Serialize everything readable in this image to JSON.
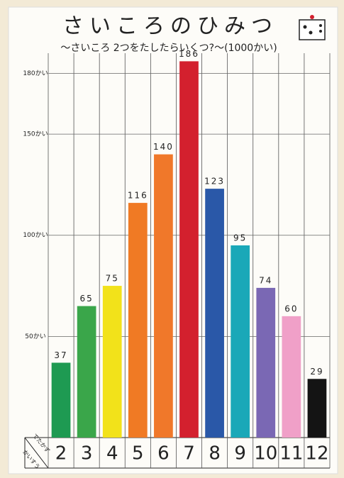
{
  "chart_data": {
    "type": "bar",
    "title": "さいころのひみつ",
    "subtitle": "〜さいころ 2つをたしたらいくつ?〜(1000かい)",
    "x_label": "でたかず",
    "y_label": "かいすう",
    "categories": [
      "2",
      "3",
      "4",
      "5",
      "6",
      "7",
      "8",
      "9",
      "10",
      "11",
      "12"
    ],
    "values": [
      37,
      65,
      75,
      116,
      140,
      186,
      123,
      95,
      74,
      60,
      29
    ],
    "colors": [
      "#1e9a52",
      "#3aa64a",
      "#f2e21a",
      "#f07a24",
      "#f0782a",
      "#d3202e",
      "#2a58a8",
      "#1aa8b8",
      "#7a68b4",
      "#f0a0c8",
      "#141414"
    ],
    "ylim": [
      0,
      190
    ],
    "yticks": [
      {
        "value": 50,
        "label": "50かい"
      },
      {
        "value": 100,
        "label": "100かい"
      },
      {
        "value": 150,
        "label": "150かい"
      },
      {
        "value": 180,
        "label": "180かい"
      }
    ],
    "grid": true
  }
}
